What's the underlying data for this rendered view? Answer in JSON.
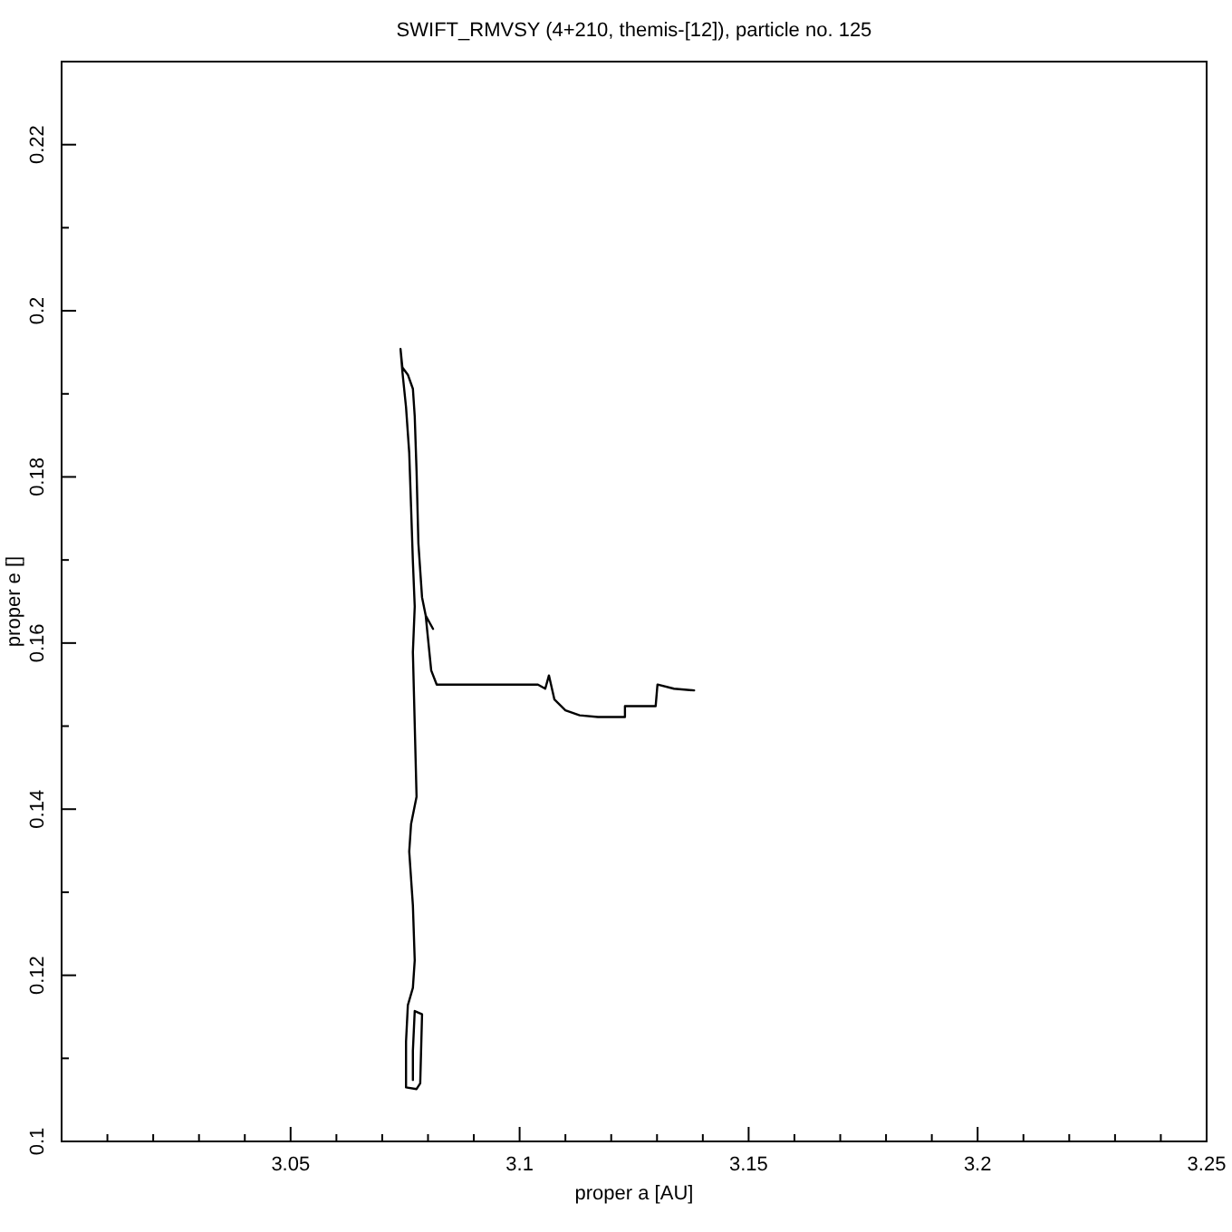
{
  "chart_data": {
    "type": "line",
    "title": "SWIFT_RMVSY (4+210, themis-[12]), particle no. 125",
    "xlabel": "proper a [AU]",
    "ylabel": "proper e []",
    "xlim": [
      3.0,
      3.25
    ],
    "ylim": [
      0.1,
      0.23
    ],
    "xticks": [
      {
        "value": 3.01,
        "label": null
      },
      {
        "value": 3.02,
        "label": null
      },
      {
        "value": 3.03,
        "label": null
      },
      {
        "value": 3.04,
        "label": null
      },
      {
        "value": 3.05,
        "label": "3.05"
      },
      {
        "value": 3.06,
        "label": null
      },
      {
        "value": 3.07,
        "label": null
      },
      {
        "value": 3.08,
        "label": null
      },
      {
        "value": 3.09,
        "label": null
      },
      {
        "value": 3.1,
        "label": "3.1"
      },
      {
        "value": 3.11,
        "label": null
      },
      {
        "value": 3.12,
        "label": null
      },
      {
        "value": 3.13,
        "label": null
      },
      {
        "value": 3.14,
        "label": null
      },
      {
        "value": 3.15,
        "label": "3.15"
      },
      {
        "value": 3.16,
        "label": null
      },
      {
        "value": 3.17,
        "label": null
      },
      {
        "value": 3.18,
        "label": null
      },
      {
        "value": 3.19,
        "label": null
      },
      {
        "value": 3.2,
        "label": "3.2"
      },
      {
        "value": 3.21,
        "label": null
      },
      {
        "value": 3.22,
        "label": null
      },
      {
        "value": 3.23,
        "label": null
      },
      {
        "value": 3.24,
        "label": null
      },
      {
        "value": 3.25,
        "label": "3.25"
      }
    ],
    "yticks": [
      {
        "value": 0.1,
        "label": "0.1"
      },
      {
        "value": 0.11,
        "label": null
      },
      {
        "value": 0.12,
        "label": "0.12"
      },
      {
        "value": 0.13,
        "label": null
      },
      {
        "value": 0.14,
        "label": "0.14"
      },
      {
        "value": 0.15,
        "label": null
      },
      {
        "value": 0.16,
        "label": "0.16"
      },
      {
        "value": 0.17,
        "label": null
      },
      {
        "value": 0.18,
        "label": "0.18"
      },
      {
        "value": 0.19,
        "label": null
      },
      {
        "value": 0.2,
        "label": "0.2"
      },
      {
        "value": 0.21,
        "label": null
      },
      {
        "value": 0.22,
        "label": "0.22"
      }
    ],
    "marker": "none",
    "line_style": "solid",
    "series": [
      {
        "color": "#000000",
        "x": [
          3.1381,
          3.1337,
          3.1301,
          3.1297,
          3.123,
          3.123,
          3.1171,
          3.1131,
          3.11,
          3.1076,
          3.1064,
          3.1056,
          3.104,
          3.0934,
          3.0854,
          3.0819,
          3.0807,
          3.0799,
          3.0795,
          3.0811,
          3.0795,
          3.0787,
          3.0779,
          3.0775,
          3.0771,
          3.0767,
          3.0756,
          3.0744,
          3.074,
          3.0744,
          3.0752,
          3.0759,
          3.0763,
          3.0767,
          3.0771,
          3.0767,
          3.0771,
          3.0775,
          3.0763,
          3.0759,
          3.0767,
          3.0771,
          3.0767,
          3.0756,
          3.0752,
          3.0752,
          3.0775,
          3.0783,
          3.0787,
          3.0771,
          3.0767,
          3.0767
        ],
        "values": [
          0.1543,
          0.1545,
          0.155,
          0.1524,
          0.1524,
          0.1511,
          0.1511,
          0.1513,
          0.1519,
          0.1532,
          0.1561,
          0.1545,
          0.155,
          0.155,
          0.155,
          0.155,
          0.1567,
          0.1611,
          0.1633,
          0.1617,
          0.1633,
          0.1655,
          0.172,
          0.1807,
          0.1873,
          0.1906,
          0.1923,
          0.1932,
          0.1954,
          0.1927,
          0.1884,
          0.1829,
          0.1764,
          0.1698,
          0.1644,
          0.1589,
          0.1502,
          0.1415,
          0.1382,
          0.1349,
          0.1284,
          0.1218,
          0.1185,
          0.1164,
          0.112,
          0.1065,
          0.1063,
          0.107,
          0.1153,
          0.1157,
          0.1109,
          0.1074
        ]
      }
    ]
  }
}
